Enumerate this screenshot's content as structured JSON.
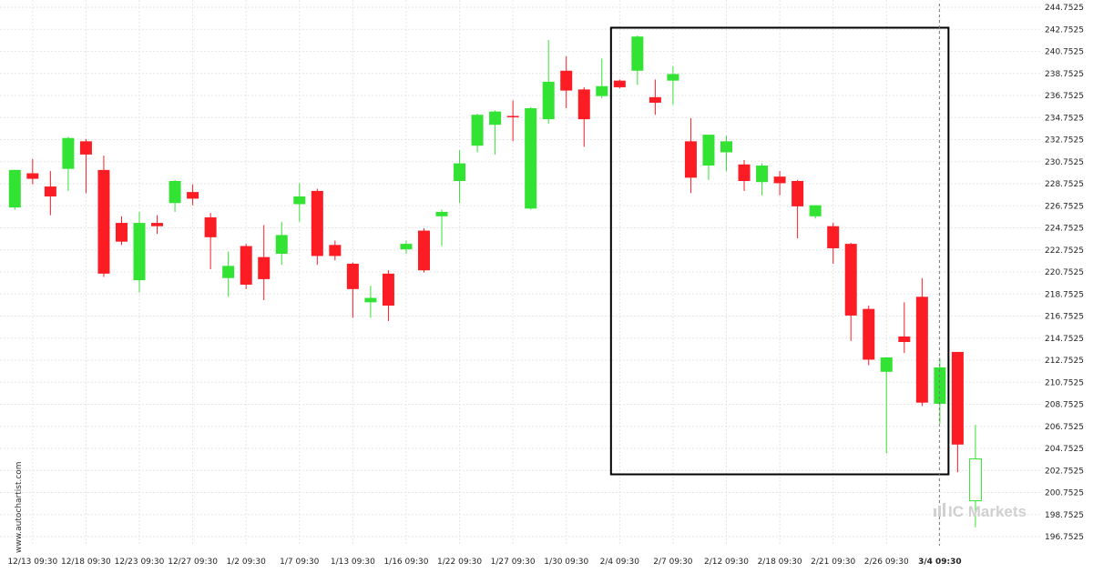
{
  "chart_data": {
    "type": "candlestick",
    "y_ticks": [
      "244.7525",
      "242.7525",
      "240.7525",
      "238.7525",
      "236.7525",
      "234.7525",
      "232.7525",
      "230.7525",
      "228.7525",
      "226.7525",
      "224.7525",
      "222.7525",
      "220.7525",
      "218.7525",
      "216.7525",
      "214.7525",
      "212.7525",
      "210.7525",
      "208.7525",
      "206.7525",
      "204.7525",
      "202.7525",
      "200.7525",
      "198.7525",
      "196.7525"
    ],
    "ylim": [
      195.7525,
      245.5
    ],
    "x_ticks": [
      {
        "label": "12/13 09:30",
        "index": 1,
        "bold": false
      },
      {
        "label": "12/18 09:30",
        "index": 4,
        "bold": false
      },
      {
        "label": "12/23 09:30",
        "index": 7,
        "bold": false
      },
      {
        "label": "12/27 09:30",
        "index": 10,
        "bold": false
      },
      {
        "label": "1/2 09:30",
        "index": 13,
        "bold": false
      },
      {
        "label": "1/7 09:30",
        "index": 16,
        "bold": false
      },
      {
        "label": "1/13 09:30",
        "index": 19,
        "bold": false
      },
      {
        "label": "1/16 09:30",
        "index": 22,
        "bold": false
      },
      {
        "label": "1/22 09:30",
        "index": 25,
        "bold": false
      },
      {
        "label": "1/27 09:30",
        "index": 28,
        "bold": false
      },
      {
        "label": "1/30 09:30",
        "index": 31,
        "bold": false
      },
      {
        "label": "2/4 09:30",
        "index": 34,
        "bold": false
      },
      {
        "label": "2/7 09:30",
        "index": 37,
        "bold": false
      },
      {
        "label": "2/12 09:30",
        "index": 40,
        "bold": false
      },
      {
        "label": "2/18 09:30",
        "index": 43,
        "bold": false
      },
      {
        "label": "2/21 09:30",
        "index": 46,
        "bold": false
      },
      {
        "label": "2/26 09:30",
        "index": 49,
        "bold": false
      },
      {
        "label": "3/4 09:30",
        "index": 52,
        "bold": true
      }
    ],
    "candles": [
      {
        "o": 226.6,
        "h": 230.0,
        "l": 226.4,
        "c": 230.0
      },
      {
        "o": 229.7,
        "h": 231.0,
        "l": 228.7,
        "c": 229.2
      },
      {
        "o": 228.5,
        "h": 229.9,
        "l": 225.9,
        "c": 227.6
      },
      {
        "o": 230.1,
        "h": 233.0,
        "l": 228.1,
        "c": 232.9
      },
      {
        "o": 232.6,
        "h": 232.8,
        "l": 227.9,
        "c": 231.4
      },
      {
        "o": 230.0,
        "h": 231.3,
        "l": 220.3,
        "c": 220.6
      },
      {
        "o": 225.2,
        "h": 225.8,
        "l": 223.2,
        "c": 223.5
      },
      {
        "o": 220.0,
        "h": 226.2,
        "l": 218.9,
        "c": 225.2
      },
      {
        "o": 225.2,
        "h": 225.9,
        "l": 224.2,
        "c": 224.9
      },
      {
        "o": 227.0,
        "h": 229.1,
        "l": 226.2,
        "c": 229.0
      },
      {
        "o": 228.0,
        "h": 228.7,
        "l": 226.8,
        "c": 227.4
      },
      {
        "o": 225.7,
        "h": 226.1,
        "l": 221.0,
        "c": 223.9
      },
      {
        "o": 220.2,
        "h": 222.6,
        "l": 218.5,
        "c": 221.3
      },
      {
        "o": 223.1,
        "h": 223.3,
        "l": 219.2,
        "c": 219.6
      },
      {
        "o": 222.1,
        "h": 225.0,
        "l": 218.2,
        "c": 220.1
      },
      {
        "o": 222.4,
        "h": 225.3,
        "l": 221.4,
        "c": 224.1
      },
      {
        "o": 226.9,
        "h": 228.8,
        "l": 225.3,
        "c": 227.6
      },
      {
        "o": 228.1,
        "h": 228.3,
        "l": 221.4,
        "c": 222.2
      },
      {
        "o": 223.2,
        "h": 223.6,
        "l": 221.8,
        "c": 222.2
      },
      {
        "o": 221.5,
        "h": 221.6,
        "l": 216.6,
        "c": 219.2
      },
      {
        "o": 218.0,
        "h": 219.5,
        "l": 216.6,
        "c": 218.4
      },
      {
        "o": 220.6,
        "h": 220.9,
        "l": 216.3,
        "c": 217.7
      },
      {
        "o": 222.8,
        "h": 223.6,
        "l": 222.4,
        "c": 223.3
      },
      {
        "o": 224.5,
        "h": 224.7,
        "l": 220.7,
        "c": 220.9
      },
      {
        "o": 225.8,
        "h": 226.4,
        "l": 223.1,
        "c": 226.2
      },
      {
        "o": 229.0,
        "h": 231.8,
        "l": 227.0,
        "c": 230.6
      },
      {
        "o": 232.2,
        "h": 235.1,
        "l": 231.6,
        "c": 235.0
      },
      {
        "o": 234.1,
        "h": 235.4,
        "l": 231.4,
        "c": 235.3
      },
      {
        "o": 234.9,
        "h": 236.3,
        "l": 232.6,
        "c": 234.8
      },
      {
        "o": 226.5,
        "h": 235.7,
        "l": 226.4,
        "c": 235.6
      },
      {
        "o": 234.6,
        "h": 241.8,
        "l": 234.2,
        "c": 238.0
      },
      {
        "o": 239.0,
        "h": 240.3,
        "l": 235.6,
        "c": 237.2
      },
      {
        "o": 237.3,
        "h": 237.5,
        "l": 232.1,
        "c": 234.6
      },
      {
        "o": 236.7,
        "h": 240.1,
        "l": 236.5,
        "c": 237.6
      },
      {
        "o": 238.1,
        "h": 238.2,
        "l": 237.4,
        "c": 237.5
      },
      {
        "o": 239.0,
        "h": 242.2,
        "l": 237.7,
        "c": 242.1
      },
      {
        "o": 236.6,
        "h": 238.2,
        "l": 235.0,
        "c": 236.1
      },
      {
        "o": 238.1,
        "h": 239.4,
        "l": 235.9,
        "c": 238.7
      },
      {
        "o": 232.6,
        "h": 234.7,
        "l": 227.9,
        "c": 229.3
      },
      {
        "o": 230.4,
        "h": 233.2,
        "l": 229.1,
        "c": 233.2
      },
      {
        "o": 231.6,
        "h": 233.1,
        "l": 229.9,
        "c": 232.6
      },
      {
        "o": 230.5,
        "h": 230.9,
        "l": 228.1,
        "c": 229.0
      },
      {
        "o": 228.9,
        "h": 230.6,
        "l": 227.7,
        "c": 230.4
      },
      {
        "o": 229.4,
        "h": 229.9,
        "l": 227.7,
        "c": 228.8
      },
      {
        "o": 229.0,
        "h": 229.1,
        "l": 223.8,
        "c": 226.7
      },
      {
        "o": 225.8,
        "h": 226.8,
        "l": 225.6,
        "c": 226.8
      },
      {
        "o": 224.9,
        "h": 225.2,
        "l": 221.5,
        "c": 222.9
      },
      {
        "o": 223.3,
        "h": 223.4,
        "l": 214.5,
        "c": 216.8
      },
      {
        "o": 217.4,
        "h": 217.7,
        "l": 212.3,
        "c": 212.8
      },
      {
        "o": 211.7,
        "h": 213.0,
        "l": 204.3,
        "c": 213.0
      },
      {
        "o": 214.9,
        "h": 218.0,
        "l": 213.4,
        "c": 214.4
      },
      {
        "o": 218.5,
        "h": 220.2,
        "l": 208.6,
        "c": 208.9
      },
      {
        "o": 208.8,
        "h": 212.9,
        "l": 207.0,
        "c": 212.1
      },
      {
        "o": 213.5,
        "h": 213.5,
        "l": 202.6,
        "c": 205.1
      },
      {
        "o": 200.0,
        "h": 206.9,
        "l": 197.6,
        "c": 203.8
      }
    ],
    "highlight_box": {
      "start_index": 34,
      "end_index": 53,
      "top": 242.9,
      "bottom": 202.4
    },
    "current_marker_index": 53,
    "colors": {
      "up": "#33e333",
      "down": "#fc1c24",
      "wick_up": "#33e333",
      "wick_down": "#fc1c24",
      "box": "#000000",
      "grid": "#e6e6e6",
      "last_up_outline": "#33e333"
    },
    "watermark": "www.autochartist.com",
    "brand": "IC Markets"
  }
}
